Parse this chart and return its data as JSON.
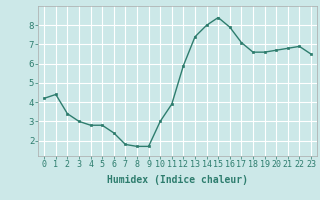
{
  "x": [
    0,
    1,
    2,
    3,
    4,
    5,
    6,
    7,
    8,
    9,
    10,
    11,
    12,
    13,
    14,
    15,
    16,
    17,
    18,
    19,
    20,
    21,
    22,
    23
  ],
  "y": [
    4.2,
    4.4,
    3.4,
    3.0,
    2.8,
    2.8,
    2.4,
    1.8,
    1.7,
    1.7,
    3.0,
    3.9,
    5.9,
    7.4,
    8.0,
    8.4,
    7.9,
    7.1,
    6.6,
    6.6,
    6.7,
    6.8,
    6.9,
    6.5
  ],
  "xlabel": "Humidex (Indice chaleur)",
  "xlim": [
    -0.5,
    23.5
  ],
  "ylim": [
    1.2,
    9.0
  ],
  "yticks": [
    2,
    3,
    4,
    5,
    6,
    7,
    8
  ],
  "xtick_labels": [
    "0",
    "1",
    "2",
    "3",
    "4",
    "5",
    "6",
    "7",
    "8",
    "9",
    "10",
    "11",
    "12",
    "13",
    "14",
    "15",
    "16",
    "17",
    "18",
    "19",
    "20",
    "21",
    "22",
    "23"
  ],
  "line_color": "#2e7d6e",
  "marker_color": "#2e7d6e",
  "bg_color": "#cce8e8",
  "grid_color": "#ffffff",
  "grid_minor_color": "#e0f4f4",
  "axis_bg": "#cce8e8",
  "tick_color": "#2e7d6e",
  "label_fontsize": 6,
  "xlabel_fontsize": 7,
  "ylabel_fontsize": 6.5
}
